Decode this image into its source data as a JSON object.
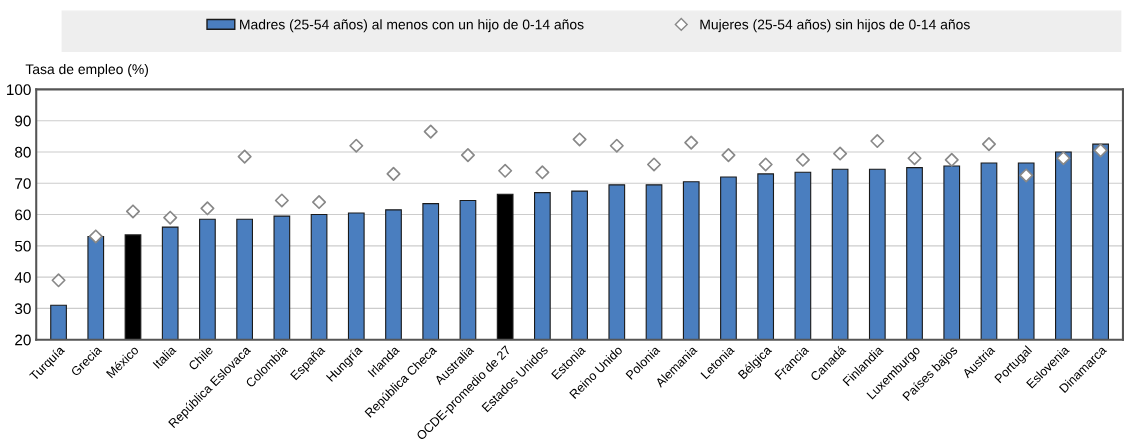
{
  "chart_data": {
    "type": "bar",
    "ylabel": "Tasa de empleo (%)",
    "categories": [
      "Turquía",
      "Grecia",
      "México",
      "Italia",
      "Chile",
      "República Eslovaca",
      "Colombia",
      "España",
      "Hungría",
      "Irlanda",
      "República Checa",
      "Australia",
      "OCDE-promedio de 27",
      "Estados Unidos",
      "Estonia",
      "Reino Unido",
      "Polonia",
      "Alemania",
      "Letonia",
      "Bélgica",
      "Francia",
      "Canadá",
      "Finlandia",
      "Luxemburgo",
      "Países bajos",
      "Austria",
      "Portugal",
      "Eslovenia",
      "Dinamarca"
    ],
    "series": [
      {
        "name": "Madres (25-54 años) al menos con un hijo de 0-14 años",
        "color": "#4a7ebf",
        "colors": [
          "#4a7ebf",
          "#4a7ebf",
          "#000000",
          "#4a7ebf",
          "#4a7ebf",
          "#4a7ebf",
          "#4a7ebf",
          "#4a7ebf",
          "#4a7ebf",
          "#4a7ebf",
          "#4a7ebf",
          "#4a7ebf",
          "#000000",
          "#4a7ebf",
          "#4a7ebf",
          "#4a7ebf",
          "#4a7ebf",
          "#4a7ebf",
          "#4a7ebf",
          "#4a7ebf",
          "#4a7ebf",
          "#4a7ebf",
          "#4a7ebf",
          "#4a7ebf",
          "#4a7ebf",
          "#4a7ebf",
          "#4a7ebf",
          "#4a7ebf",
          "#4a7ebf"
        ],
        "values": [
          31,
          53,
          53.5,
          56,
          58.5,
          58.5,
          59.5,
          60,
          60.5,
          61.5,
          63.5,
          64.5,
          66.5,
          67,
          67.5,
          69.5,
          69.5,
          70.5,
          72,
          73,
          73.5,
          74.5,
          74.5,
          75,
          75.5,
          76.5,
          76.5,
          80,
          82.5
        ]
      },
      {
        "name": "Mujeres (25-54 años) sin hijos de 0-14 años",
        "type": "scatter",
        "marker": "diamond",
        "color": "#ffffff",
        "values": [
          39,
          53,
          61,
          59,
          62,
          78.5,
          64.5,
          64,
          82,
          73,
          86.5,
          79,
          74,
          73.5,
          84,
          82,
          76,
          83,
          79,
          76,
          77.5,
          79.5,
          83.5,
          78,
          77.5,
          82.5,
          72.5,
          78,
          80.5
        ]
      }
    ],
    "ylim": [
      20,
      100
    ],
    "yticks": [
      20,
      30,
      40,
      50,
      60,
      70,
      80,
      90,
      100
    ],
    "grid": "y",
    "legend": "top"
  }
}
